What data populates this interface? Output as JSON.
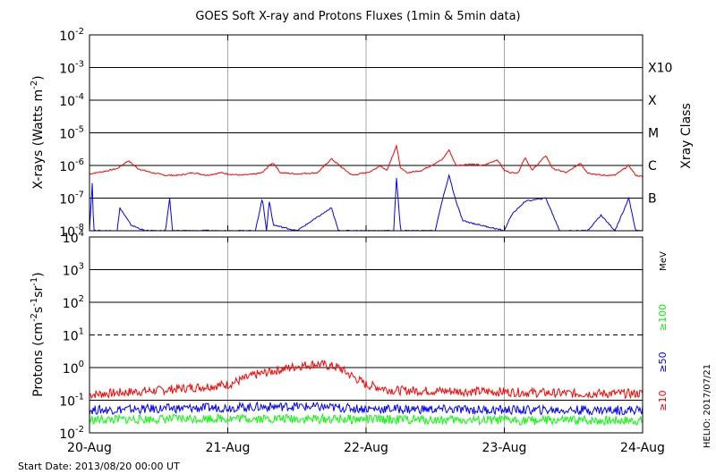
{
  "title": "GOES Soft X-ray and Protons Fluxes",
  "title_suffix": "(1min & 5min data)",
  "footer_left": "Start Date: 2013/08/20 00:00 UT",
  "footer_right": "HELIO: 2017/07/21",
  "colors": {
    "frame": "#000000",
    "grid_day": "#aaaaaa",
    "xray_long": "#ff0000",
    "xray_short": "#0000ff",
    "proton_10": "#ff0000",
    "proton_50": "#0000ff",
    "proton_100": "#00ff00"
  },
  "chart_data": [
    {
      "type": "line",
      "panel": "xray",
      "ylabel": "X-rays (Watts m",
      "ylabel_sup": "-2",
      "ylabel_close": ")",
      "y_scale": "log",
      "ylim": [
        1e-08,
        0.01
      ],
      "y_ticks": [
        {
          "base": "10",
          "exp": "-8",
          "value": 1e-08
        },
        {
          "base": "10",
          "exp": "-7",
          "value": 1e-07
        },
        {
          "base": "10",
          "exp": "-6",
          "value": 1e-06
        },
        {
          "base": "10",
          "exp": "-5",
          "value": 1e-05
        },
        {
          "base": "10",
          "exp": "-4",
          "value": 0.0001
        },
        {
          "base": "10",
          "exp": "-3",
          "value": 0.001
        },
        {
          "base": "10",
          "exp": "-2",
          "value": 0.01
        }
      ],
      "right_axis_title": "Xray Class",
      "class_labels": [
        {
          "label": "B",
          "value": 1e-07
        },
        {
          "label": "C",
          "value": 1e-06
        },
        {
          "label": "M",
          "value": 1e-05
        },
        {
          "label": "X",
          "value": 0.0001
        },
        {
          "label": "X10",
          "value": 0.001
        }
      ],
      "hlines": [
        1e-07,
        1e-06,
        1e-05,
        0.0001,
        0.001
      ],
      "series": [
        {
          "color": "#ff0000",
          "points": [
            [
              0.0,
              5.5e-07
            ],
            [
              0.1,
              6.5e-07
            ],
            [
              0.2,
              8e-07
            ],
            [
              0.28,
              1.4e-06
            ],
            [
              0.3,
              1.2e-06
            ],
            [
              0.35,
              8e-07
            ],
            [
              0.45,
              6e-07
            ],
            [
              0.55,
              5e-07
            ],
            [
              0.65,
              5e-07
            ],
            [
              0.75,
              6e-07
            ],
            [
              0.85,
              5e-07
            ],
            [
              0.95,
              6e-07
            ],
            [
              1.0,
              5.5e-07
            ],
            [
              1.1,
              5e-07
            ],
            [
              1.2,
              5.5e-07
            ],
            [
              1.25,
              6e-07
            ],
            [
              1.3,
              1e-06
            ],
            [
              1.33,
              1.2e-06
            ],
            [
              1.38,
              6e-07
            ],
            [
              1.5,
              5.5e-07
            ],
            [
              1.65,
              6e-07
            ],
            [
              1.75,
              1.6e-06
            ],
            [
              1.82,
              9e-07
            ],
            [
              1.9,
              5e-07
            ],
            [
              2.0,
              6e-07
            ],
            [
              2.05,
              7e-07
            ],
            [
              2.1,
              1e-06
            ],
            [
              2.15,
              7e-07
            ],
            [
              2.22,
              4e-06
            ],
            [
              2.25,
              8e-07
            ],
            [
              2.3,
              6e-07
            ],
            [
              2.4,
              7e-07
            ],
            [
              2.55,
              1.5e-06
            ],
            [
              2.6,
              3e-06
            ],
            [
              2.65,
              1e-06
            ],
            [
              2.75,
              1.1e-06
            ],
            [
              2.85,
              1e-06
            ],
            [
              2.95,
              1.5e-06
            ],
            [
              3.0,
              7e-07
            ],
            [
              3.05,
              6e-07
            ],
            [
              3.1,
              6e-07
            ],
            [
              3.15,
              1.8e-06
            ],
            [
              3.2,
              7e-07
            ],
            [
              3.3,
              2e-06
            ],
            [
              3.35,
              8e-07
            ],
            [
              3.45,
              6e-07
            ],
            [
              3.55,
              1.2e-06
            ],
            [
              3.6,
              6e-07
            ],
            [
              3.7,
              5e-07
            ],
            [
              3.8,
              5e-07
            ],
            [
              3.9,
              1e-06
            ],
            [
              3.95,
              5e-07
            ],
            [
              4.0,
              4.5e-07
            ]
          ]
        },
        {
          "color": "#0000ff",
          "points": [
            [
              0.0,
              1e-08
            ],
            [
              0.02,
              3e-07
            ],
            [
              0.03,
              1e-08
            ],
            [
              0.2,
              1e-08
            ],
            [
              0.22,
              5e-08
            ],
            [
              0.3,
              1.5e-08
            ],
            [
              0.4,
              1e-08
            ],
            [
              0.55,
              1e-08
            ],
            [
              0.58,
              1e-07
            ],
            [
              0.6,
              1e-08
            ],
            [
              1.0,
              1e-08
            ],
            [
              1.2,
              1e-08
            ],
            [
              1.25,
              1e-07
            ],
            [
              1.28,
              1e-08
            ],
            [
              1.3,
              8e-08
            ],
            [
              1.33,
              1.5e-08
            ],
            [
              1.5,
              1e-08
            ],
            [
              1.75,
              5e-08
            ],
            [
              1.8,
              1e-08
            ],
            [
              2.2,
              1e-08
            ],
            [
              2.22,
              4e-07
            ],
            [
              2.25,
              1e-08
            ],
            [
              2.5,
              1e-08
            ],
            [
              2.55,
              8e-08
            ],
            [
              2.6,
              5e-07
            ],
            [
              2.65,
              8e-08
            ],
            [
              2.7,
              2e-08
            ],
            [
              3.0,
              1e-08
            ],
            [
              3.05,
              3e-08
            ],
            [
              3.15,
              8e-08
            ],
            [
              3.3,
              1e-07
            ],
            [
              3.4,
              1e-08
            ],
            [
              3.6,
              1e-08
            ],
            [
              3.7,
              3e-08
            ],
            [
              3.8,
              1e-08
            ],
            [
              3.9,
              1e-07
            ],
            [
              3.95,
              1e-08
            ],
            [
              4.0,
              1e-08
            ]
          ]
        }
      ]
    },
    {
      "type": "line",
      "panel": "protons",
      "ylabel": "Protons (cm",
      "ylabel_parts": [
        "Protons (cm",
        "-2",
        "s",
        "-1",
        "sr",
        "-1",
        ")"
      ],
      "y_scale": "log",
      "ylim": [
        0.01,
        10000
      ],
      "y_ticks": [
        {
          "base": "10",
          "exp": "-2",
          "value": 0.01
        },
        {
          "base": "10",
          "exp": "-1",
          "value": 0.1
        },
        {
          "base": "10",
          "exp": "0",
          "value": 1
        },
        {
          "base": "10",
          "exp": "1",
          "value": 10
        },
        {
          "base": "10",
          "exp": "2",
          "value": 100
        },
        {
          "base": "10",
          "exp": "3",
          "value": 1000
        },
        {
          "base": "10",
          "exp": "4",
          "value": 10000
        }
      ],
      "right_axis_title": "MeV",
      "hlines": [
        0.1,
        1,
        100,
        1000
      ],
      "dashed_hline": 10,
      "legend": [
        {
          "label": "≥100",
          "color": "#00ff00"
        },
        {
          "label": "≥50",
          "color": "#0000ff"
        },
        {
          "label": "≥10",
          "color": "#ff0000"
        }
      ],
      "series": [
        {
          "name": "≥10",
          "color": "#ff0000",
          "points": [
            [
              0.0,
              0.15
            ],
            [
              0.5,
              0.2
            ],
            [
              1.0,
              0.3
            ],
            [
              1.2,
              0.6
            ],
            [
              1.5,
              1.1
            ],
            [
              1.65,
              1.3
            ],
            [
              1.8,
              1.0
            ],
            [
              2.0,
              0.3
            ],
            [
              2.2,
              0.2
            ],
            [
              3.0,
              0.18
            ],
            [
              3.5,
              0.16
            ],
            [
              4.0,
              0.16
            ]
          ]
        },
        {
          "name": "≥50",
          "color": "#0000ff",
          "points": [
            [
              0.0,
              0.05
            ],
            [
              1.0,
              0.06
            ],
            [
              1.5,
              0.065
            ],
            [
              2.0,
              0.055
            ],
            [
              3.0,
              0.05
            ],
            [
              4.0,
              0.05
            ]
          ]
        },
        {
          "name": "≥100",
          "color": "#00ff00",
          "points": [
            [
              0.0,
              0.025
            ],
            [
              1.0,
              0.028
            ],
            [
              2.0,
              0.026
            ],
            [
              3.0,
              0.024
            ],
            [
              4.0,
              0.024
            ]
          ]
        }
      ]
    }
  ],
  "x_axis": {
    "categories": [
      "20-Aug",
      "21-Aug",
      "22-Aug",
      "23-Aug",
      "24-Aug"
    ],
    "xlim": [
      0,
      4
    ]
  }
}
